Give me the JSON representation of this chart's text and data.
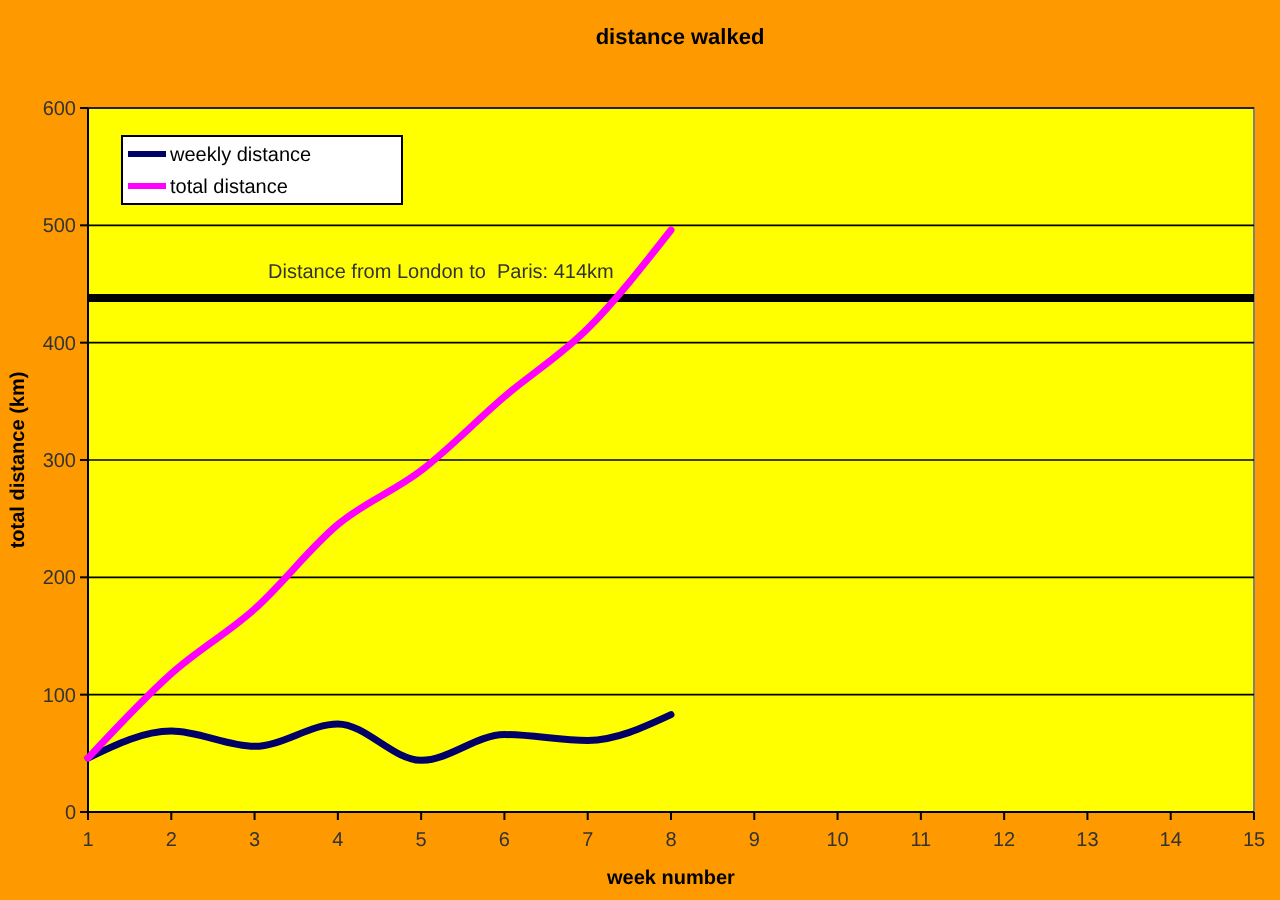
{
  "chart_data": {
    "type": "line",
    "title": "distance walked",
    "xlabel": "week number",
    "ylabel": "total distance (km)",
    "x": [
      1,
      2,
      3,
      4,
      5,
      6,
      7,
      8
    ],
    "series": [
      {
        "name": "weekly distance",
        "color": "#000066",
        "values": [
          46,
          69,
          56,
          75,
          44,
          66,
          61,
          83
        ]
      },
      {
        "name": "total distance",
        "color": "#ff00ff",
        "values": [
          46,
          118,
          173,
          245,
          291,
          354,
          412,
          496
        ]
      }
    ],
    "xlim": [
      1,
      15
    ],
    "xticks": [
      1,
      2,
      3,
      4,
      5,
      6,
      7,
      8,
      9,
      10,
      11,
      12,
      13,
      14,
      15
    ],
    "ylim": [
      0,
      600
    ],
    "yticks": [
      0,
      100,
      200,
      300,
      400,
      500,
      600
    ],
    "ref_lines": [
      {
        "axis": "y",
        "value": 438,
        "color": "#000000"
      }
    ],
    "annotations": [
      "Distance from London to  Paris: 414km"
    ],
    "grid": "y",
    "legend": "top left",
    "marker": "none",
    "line_style": "solid"
  }
}
